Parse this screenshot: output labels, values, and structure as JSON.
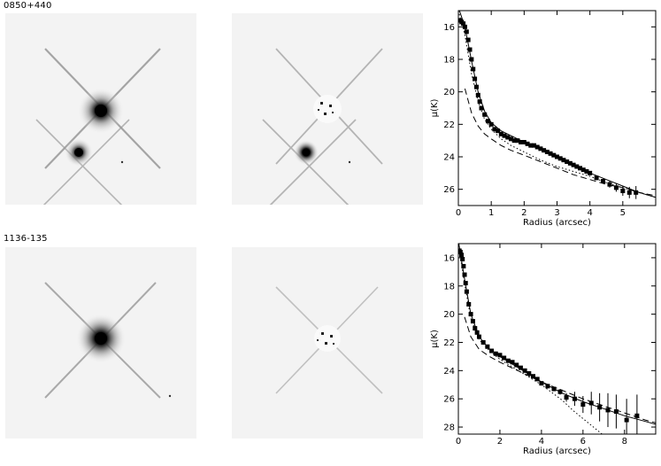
{
  "rows": [
    {
      "object_label": "0850+440"
    },
    {
      "object_label": "1136-135"
    }
  ],
  "chart_data": [
    {
      "type": "scatter",
      "title": "",
      "xlabel": "Radius (arcsec)",
      "ylabel": "μ(K)",
      "xlim": [
        0,
        6
      ],
      "ylim": [
        27,
        15
      ],
      "y_inverted": true,
      "x_ticks": [
        0,
        1,
        2,
        3,
        4,
        5
      ],
      "y_ticks": [
        16,
        18,
        20,
        22,
        24,
        26
      ],
      "series": [
        {
          "style": "points",
          "x": [
            0.05,
            0.1,
            0.15,
            0.2,
            0.25,
            0.3,
            0.35,
            0.4,
            0.45,
            0.5,
            0.55,
            0.6,
            0.65,
            0.7,
            0.8,
            0.9,
            1.0,
            1.1,
            1.2,
            1.3,
            1.4,
            1.5,
            1.6,
            1.7,
            1.8,
            1.9,
            2.0,
            2.1,
            2.2,
            2.3,
            2.4,
            2.5,
            2.6,
            2.7,
            2.8,
            2.9,
            3.0,
            3.1,
            3.2,
            3.3,
            3.4,
            3.5,
            3.6,
            3.7,
            3.8,
            3.9,
            4.0,
            4.2,
            4.4,
            4.6,
            4.8,
            5.0,
            5.2,
            5.4
          ],
          "y": [
            15.6,
            15.7,
            15.8,
            16.0,
            16.3,
            16.8,
            17.4,
            18.0,
            18.6,
            19.2,
            19.7,
            20.2,
            20.6,
            21.0,
            21.4,
            21.8,
            22.0,
            22.3,
            22.4,
            22.6,
            22.7,
            22.8,
            22.9,
            23.0,
            23.0,
            23.1,
            23.1,
            23.2,
            23.3,
            23.3,
            23.4,
            23.5,
            23.6,
            23.7,
            23.8,
            23.9,
            24.0,
            24.1,
            24.2,
            24.3,
            24.4,
            24.5,
            24.6,
            24.7,
            24.8,
            24.9,
            25.0,
            25.3,
            25.5,
            25.7,
            25.9,
            26.1,
            26.2,
            26.2
          ],
          "errors": [
            0,
            0,
            0,
            0,
            0,
            0,
            0,
            0,
            0,
            0,
            0,
            0,
            0,
            0,
            0,
            0,
            0,
            0,
            0,
            0,
            0,
            0,
            0,
            0,
            0,
            0,
            0,
            0,
            0,
            0,
            0,
            0,
            0,
            0,
            0,
            0,
            0,
            0,
            0,
            0,
            0,
            0,
            0,
            0,
            0,
            0,
            0,
            0.1,
            0.15,
            0.2,
            0.25,
            0.3,
            0.35,
            0.4
          ]
        },
        {
          "style": "solid",
          "x": [
            0,
            0.2,
            0.4,
            0.6,
            0.8,
            1.0,
            1.3,
            1.6,
            2.0,
            2.5,
            3.0,
            3.5,
            4.0,
            4.5,
            5.0,
            5.5,
            6.0
          ],
          "y": [
            14.8,
            16.0,
            18.1,
            20.0,
            21.2,
            21.9,
            22.4,
            22.7,
            23.1,
            23.5,
            24.0,
            24.5,
            25.0,
            25.4,
            25.8,
            26.2,
            26.5
          ]
        },
        {
          "style": "dashed",
          "x": [
            0.2,
            0.4,
            0.6,
            0.8,
            1.0,
            1.3,
            1.6,
            2.0,
            2.5,
            3.0,
            3.5,
            4.0,
            4.5,
            5.0,
            5.5,
            6.0
          ],
          "y": [
            19.8,
            21.3,
            22.1,
            22.6,
            22.9,
            23.3,
            23.6,
            23.9,
            24.3,
            24.7,
            25.1,
            25.4,
            25.7,
            25.9,
            26.2,
            26.4
          ]
        },
        {
          "style": "dotted",
          "x": [
            0,
            0.2,
            0.4,
            0.6,
            0.8,
            1.0,
            1.3,
            1.6,
            2.0,
            2.5,
            3.0,
            3.5,
            4.0,
            4.5,
            5.0,
            5.5,
            6.0
          ],
          "y": [
            15.0,
            16.5,
            18.9,
            20.6,
            21.7,
            22.3,
            22.9,
            23.3,
            23.7,
            24.2,
            24.6,
            24.9,
            25.2,
            25.6,
            25.9,
            26.2,
            26.5
          ]
        }
      ]
    },
    {
      "type": "scatter",
      "title": "",
      "xlabel": "Radius (arcsec)",
      "ylabel": "μ(K)",
      "xlim": [
        0,
        9.5
      ],
      "ylim": [
        28.5,
        15
      ],
      "y_inverted": true,
      "x_ticks": [
        0,
        2,
        4,
        6,
        8
      ],
      "y_ticks": [
        16,
        18,
        20,
        22,
        24,
        26,
        28
      ],
      "series": [
        {
          "style": "points",
          "x": [
            0.05,
            0.1,
            0.15,
            0.2,
            0.25,
            0.3,
            0.35,
            0.4,
            0.5,
            0.6,
            0.7,
            0.8,
            0.9,
            1.0,
            1.2,
            1.4,
            1.6,
            1.8,
            2.0,
            2.2,
            2.4,
            2.6,
            2.8,
            3.0,
            3.2,
            3.4,
            3.6,
            3.8,
            4.0,
            4.3,
            4.6,
            4.9,
            5.2,
            5.6,
            6.0,
            6.4,
            6.8,
            7.2,
            7.6,
            8.1,
            8.6
          ],
          "y": [
            15.5,
            15.6,
            15.8,
            16.1,
            16.6,
            17.2,
            17.8,
            18.4,
            19.3,
            20.0,
            20.5,
            21.0,
            21.3,
            21.6,
            22.0,
            22.3,
            22.6,
            22.8,
            22.9,
            23.1,
            23.3,
            23.4,
            23.6,
            23.8,
            24.0,
            24.2,
            24.4,
            24.6,
            24.9,
            25.1,
            25.3,
            25.5,
            25.9,
            26.0,
            26.4,
            26.3,
            26.6,
            26.8,
            26.9,
            27.5,
            27.2
          ],
          "errors": [
            0,
            0,
            0,
            0,
            0,
            0,
            0,
            0,
            0,
            0,
            0,
            0,
            0,
            0,
            0,
            0,
            0,
            0,
            0,
            0,
            0,
            0,
            0,
            0,
            0,
            0,
            0,
            0,
            0,
            0,
            0,
            0.2,
            0.3,
            0.5,
            0.6,
            0.8,
            1.0,
            1.2,
            1.2,
            1.5,
            1.5
          ]
        },
        {
          "style": "solid",
          "x": [
            0,
            0.3,
            0.6,
            1.0,
            1.5,
            2.0,
            3.0,
            4.0,
            5.0,
            6.0,
            7.0,
            8.0,
            9.0,
            9.5
          ],
          "y": [
            14.8,
            17.5,
            20.0,
            21.6,
            22.5,
            23.0,
            23.9,
            24.8,
            25.6,
            26.2,
            26.7,
            27.2,
            27.6,
            27.8
          ]
        },
        {
          "style": "dashed",
          "x": [
            0.3,
            0.6,
            1.0,
            1.5,
            2.0,
            3.0,
            4.0,
            5.0,
            6.0,
            7.0,
            8.0,
            9.0,
            9.5
          ],
          "y": [
            20.2,
            21.6,
            22.5,
            23.0,
            23.4,
            24.1,
            24.8,
            25.4,
            26.0,
            26.5,
            27.0,
            27.5,
            27.7
          ]
        },
        {
          "style": "dotted",
          "x": [
            0,
            0.3,
            0.6,
            1.0,
            1.5,
            2.0,
            3.0,
            4.0,
            5.0,
            5.5,
            6.0,
            6.5,
            7.0
          ],
          "y": [
            15.1,
            17.8,
            20.3,
            21.8,
            22.6,
            23.2,
            24.1,
            25.0,
            26.1,
            26.8,
            27.4,
            28.0,
            28.6
          ]
        }
      ]
    }
  ]
}
